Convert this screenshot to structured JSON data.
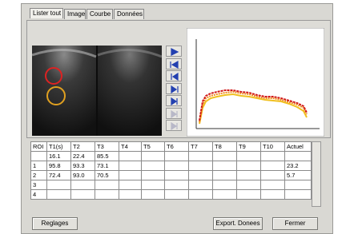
{
  "tabs": [
    "Lister tout",
    "Image",
    "Courbe",
    "Données"
  ],
  "table": {
    "header": [
      "ROI",
      "T1(s)",
      "T2",
      "T3",
      "T4",
      "T5",
      "T6",
      "T7",
      "T8",
      "T9",
      "T10",
      "Actuel"
    ],
    "rows": [
      [
        null,
        "16.1",
        "22.4",
        "85.5",
        null,
        null,
        null,
        null,
        null,
        null,
        null,
        null
      ],
      [
        "1",
        "95.8",
        "93.3",
        "73.1",
        null,
        null,
        null,
        null,
        null,
        null,
        null,
        "23.2"
      ],
      [
        "2",
        "72.4",
        "93.0",
        "70.5",
        null,
        null,
        null,
        null,
        null,
        null,
        null,
        "5.7"
      ],
      [
        "3",
        null,
        null,
        null,
        null,
        null,
        null,
        null,
        null,
        null,
        null,
        null
      ],
      [
        "4",
        null,
        null,
        null,
        null,
        null,
        null,
        null,
        null,
        null,
        null,
        null
      ]
    ]
  },
  "buttons": {
    "settings": "Reglages",
    "export": "Export. Donees",
    "close": "Fermer"
  }
}
